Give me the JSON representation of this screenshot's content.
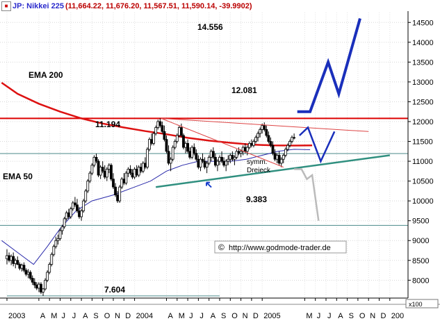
{
  "header": {
    "symbol": "JP: Nikkei 225",
    "values": "(11,664.22, 11,676.20, 11,567.51, 11,590.14, -39.9902)"
  },
  "chart_data": {
    "type": "candlestick",
    "title": "JP: Nikkei 225",
    "ylim": [
      7550,
      14750
    ],
    "y_ticks": [
      8000,
      8500,
      9000,
      9500,
      10000,
      10500,
      11000,
      11500,
      12000,
      12500,
      13000,
      13500,
      14000,
      14500
    ],
    "y_tick_labels": [
      "8000",
      "8500",
      "9000",
      "9500",
      "10000",
      "10500",
      "11000",
      "11500",
      "12000",
      "12500",
      "13000",
      "13500",
      "14000",
      "14500"
    ],
    "x_ticks": [
      {
        "label": "2003",
        "m": 0
      },
      {
        "label": "A",
        "m": 3
      },
      {
        "label": "M",
        "m": 4
      },
      {
        "label": "J",
        "m": 5
      },
      {
        "label": "J",
        "m": 6
      },
      {
        "label": "A",
        "m": 7
      },
      {
        "label": "S",
        "m": 8
      },
      {
        "label": "O",
        "m": 9
      },
      {
        "label": "N",
        "m": 10
      },
      {
        "label": "D",
        "m": 11
      },
      {
        "label": "2004",
        "m": 12
      },
      {
        "label": "A",
        "m": 15
      },
      {
        "label": "M",
        "m": 16
      },
      {
        "label": "J",
        "m": 17
      },
      {
        "label": "J",
        "m": 18
      },
      {
        "label": "A",
        "m": 19
      },
      {
        "label": "S",
        "m": 20
      },
      {
        "label": "O",
        "m": 21
      },
      {
        "label": "N",
        "m": 22
      },
      {
        "label": "D",
        "m": 23
      },
      {
        "label": "2005",
        "m": 24
      },
      {
        "label": "M",
        "m": 28
      },
      {
        "label": "J",
        "m": 29
      },
      {
        "label": "J",
        "m": 30
      },
      {
        "label": "A",
        "m": 31
      },
      {
        "label": "S",
        "m": 32
      },
      {
        "label": "O",
        "m": 33
      },
      {
        "label": "N",
        "m": 34
      },
      {
        "label": "D",
        "m": 35
      },
      {
        "label": "200",
        "m": 36
      }
    ],
    "x_scale_label": "x100",
    "support_resistance": [
      {
        "value": 12081,
        "label": "12.081",
        "color": "#dd0000"
      },
      {
        "value": 11194,
        "label": "11.194",
        "color": "#4a8a8a"
      },
      {
        "value": 9383,
        "label": "9.383",
        "color": "#4a8a8a"
      }
    ],
    "low_line": {
      "value": 7604,
      "label": "7.604",
      "from_m": 0,
      "to_m": 20
    },
    "target_label": "14.556",
    "ema200": {
      "label": "EMA 200",
      "points": [
        [
          -0.5,
          12980
        ],
        [
          1,
          12700
        ],
        [
          3,
          12450
        ],
        [
          5,
          12250
        ],
        [
          7,
          12080
        ],
        [
          9,
          11950
        ],
        [
          11,
          11850
        ],
        [
          13,
          11760
        ],
        [
          15,
          11680
        ],
        [
          17,
          11590
        ],
        [
          19,
          11520
        ],
        [
          21,
          11465
        ],
        [
          23,
          11420
        ],
        [
          25,
          11400
        ],
        [
          27,
          11395
        ],
        [
          28.7,
          11400
        ]
      ]
    },
    "ema50": {
      "label": "EMA 50",
      "points": [
        [
          -0.5,
          9000
        ],
        [
          1,
          8700
        ],
        [
          2.5,
          8400
        ],
        [
          3.8,
          8850
        ],
        [
          5,
          9300
        ],
        [
          6.5,
          9750
        ],
        [
          8,
          10000
        ],
        [
          10,
          10150
        ],
        [
          12,
          10350
        ],
        [
          13.5,
          10500
        ],
        [
          15,
          10750
        ],
        [
          16.5,
          10900
        ],
        [
          18,
          11000
        ],
        [
          19.5,
          11000
        ],
        [
          21,
          11000
        ],
        [
          22.5,
          11050
        ],
        [
          24,
          11150
        ],
        [
          25.5,
          11250
        ],
        [
          27,
          11300
        ],
        [
          28.5,
          11290
        ]
      ]
    },
    "candles": [
      [
        0,
        8540,
        8780,
        8400,
        8620
      ],
      [
        0.2,
        8620,
        8700,
        8450,
        8500
      ],
      [
        0.4,
        8500,
        8650,
        8380,
        8600
      ],
      [
        0.6,
        8600,
        8700,
        8350,
        8420
      ],
      [
        0.8,
        8420,
        8550,
        8300,
        8500
      ],
      [
        1,
        8500,
        8600,
        8380,
        8400
      ],
      [
        1.2,
        8400,
        8450,
        8250,
        8300
      ],
      [
        1.4,
        8300,
        8420,
        8220,
        8380
      ],
      [
        1.6,
        8380,
        8450,
        8200,
        8250
      ],
      [
        1.8,
        8250,
        8300,
        8100,
        8150
      ],
      [
        2,
        8150,
        8280,
        8050,
        8200
      ],
      [
        2.2,
        8200,
        8250,
        8000,
        8050
      ],
      [
        2.4,
        8050,
        8120,
        7880,
        7950
      ],
      [
        2.6,
        7950,
        8050,
        7800,
        7880
      ],
      [
        2.8,
        7880,
        7950,
        7750,
        7800
      ],
      [
        3,
        7800,
        7950,
        7700,
        7900
      ],
      [
        3.2,
        7900,
        7950,
        7650,
        7700
      ],
      [
        3.4,
        7700,
        7800,
        7604,
        7780
      ],
      [
        3.6,
        7780,
        8050,
        7740,
        8000
      ],
      [
        3.8,
        8000,
        8250,
        7950,
        8200
      ],
      [
        4,
        8200,
        8450,
        8150,
        8400
      ],
      [
        4.2,
        8400,
        8700,
        8350,
        8650
      ],
      [
        4.4,
        8650,
        8900,
        8600,
        8850
      ],
      [
        4.6,
        8850,
        9100,
        8800,
        9000
      ],
      [
        4.8,
        9000,
        9150,
        8900,
        9050
      ],
      [
        5,
        9050,
        9300,
        9000,
        9250
      ],
      [
        5.2,
        9250,
        9400,
        9150,
        9350
      ],
      [
        5.4,
        9350,
        9600,
        9300,
        9550
      ],
      [
        5.6,
        9550,
        9750,
        9500,
        9700
      ],
      [
        5.8,
        9700,
        9800,
        9550,
        9600
      ],
      [
        6,
        9600,
        9850,
        9550,
        9800
      ],
      [
        6.2,
        9800,
        10000,
        9750,
        9950
      ],
      [
        6.4,
        9950,
        10100,
        9850,
        9900
      ],
      [
        6.6,
        9900,
        10050,
        9700,
        9750
      ],
      [
        6.8,
        9750,
        9850,
        9550,
        9600
      ],
      [
        7,
        9600,
        9800,
        9500,
        9750
      ],
      [
        7.2,
        9750,
        10050,
        9700,
        10000
      ],
      [
        7.4,
        10000,
        10300,
        9950,
        10250
      ],
      [
        7.6,
        10250,
        10550,
        10200,
        10500
      ],
      [
        7.8,
        10500,
        10750,
        10450,
        10700
      ],
      [
        8,
        10700,
        10950,
        10650,
        10900
      ],
      [
        8.2,
        10900,
        11150,
        10850,
        11100
      ],
      [
        8.4,
        11100,
        11194,
        10950,
        11000
      ],
      [
        8.6,
        11000,
        11050,
        10600,
        10650
      ],
      [
        8.8,
        10650,
        10900,
        10550,
        10850
      ],
      [
        9,
        10850,
        11000,
        10700,
        10750
      ],
      [
        9.2,
        10750,
        10900,
        10550,
        10600
      ],
      [
        9.4,
        10600,
        10850,
        10500,
        10800
      ],
      [
        9.6,
        10800,
        10950,
        10700,
        10900
      ],
      [
        9.8,
        10900,
        10950,
        10500,
        10550
      ],
      [
        10,
        10550,
        10700,
        10300,
        10350
      ],
      [
        10.2,
        10350,
        10450,
        10100,
        10150
      ],
      [
        10.4,
        10150,
        10250,
        9950,
        10000
      ],
      [
        10.6,
        10000,
        10400,
        9950,
        10350
      ],
      [
        10.8,
        10350,
        10600,
        10300,
        10550
      ],
      [
        11,
        10550,
        10700,
        10400,
        10450
      ],
      [
        11.2,
        10450,
        10750,
        10400,
        10700
      ],
      [
        11.4,
        10700,
        10850,
        10600,
        10800
      ],
      [
        11.6,
        10800,
        10900,
        10650,
        10700
      ],
      [
        11.8,
        10700,
        10800,
        10550,
        10600
      ],
      [
        12,
        10600,
        10850,
        10550,
        10800
      ],
      [
        12.2,
        10800,
        10900,
        10600,
        10650
      ],
      [
        12.4,
        10650,
        10900,
        10600,
        10850
      ],
      [
        12.6,
        10850,
        10950,
        10700,
        10750
      ],
      [
        12.8,
        10750,
        11000,
        10700,
        10950
      ],
      [
        13,
        10950,
        11100,
        10800,
        10850
      ],
      [
        13.2,
        10850,
        11350,
        10800,
        11300
      ],
      [
        13.4,
        11300,
        11600,
        11250,
        11550
      ],
      [
        13.6,
        11550,
        11700,
        11400,
        11450
      ],
      [
        13.8,
        11450,
        11750,
        11400,
        11700
      ],
      [
        14,
        11700,
        11900,
        11650,
        11850
      ],
      [
        14.2,
        11850,
        12050,
        11800,
        12000
      ],
      [
        14.4,
        12000,
        12081,
        11850,
        11900
      ],
      [
        14.6,
        11900,
        12000,
        11700,
        11750
      ],
      [
        14.8,
        11750,
        11900,
        11500,
        11550
      ],
      [
        15,
        11550,
        11650,
        11200,
        11250
      ],
      [
        15.2,
        11250,
        11400,
        10900,
        10950
      ],
      [
        15.4,
        10950,
        11100,
        10750,
        11050
      ],
      [
        15.6,
        11050,
        11400,
        11000,
        11350
      ],
      [
        15.8,
        11350,
        11550,
        11300,
        11500
      ],
      [
        16,
        11500,
        11700,
        11450,
        11650
      ],
      [
        16.2,
        11650,
        11900,
        11600,
        11850
      ],
      [
        16.4,
        11850,
        11950,
        11600,
        11650
      ],
      [
        16.6,
        11650,
        11700,
        11300,
        11350
      ],
      [
        16.8,
        11350,
        11500,
        11200,
        11450
      ],
      [
        17,
        11450,
        11550,
        11200,
        11250
      ],
      [
        17.2,
        11250,
        11350,
        11050,
        11100
      ],
      [
        17.4,
        11100,
        11400,
        11050,
        11350
      ],
      [
        17.6,
        11350,
        11450,
        11150,
        11200
      ],
      [
        17.8,
        11200,
        11300,
        11000,
        11050
      ],
      [
        18,
        11050,
        11150,
        10800,
        10850
      ],
      [
        18.2,
        10850,
        11100,
        10750,
        11050
      ],
      [
        18.4,
        11050,
        11200,
        10950,
        11000
      ],
      [
        18.6,
        11000,
        11100,
        10800,
        10850
      ],
      [
        18.8,
        10850,
        11000,
        10700,
        10950
      ],
      [
        19,
        10950,
        11150,
        10900,
        11100
      ],
      [
        19.2,
        11100,
        11300,
        11000,
        11250
      ],
      [
        19.4,
        11250,
        11350,
        11050,
        11100
      ],
      [
        19.6,
        11100,
        11200,
        10850,
        10900
      ],
      [
        19.8,
        10900,
        11050,
        10750,
        11000
      ],
      [
        20,
        11000,
        11150,
        10900,
        11100
      ],
      [
        20.2,
        11100,
        11250,
        10950,
        11000
      ],
      [
        20.4,
        11000,
        11100,
        10850,
        10900
      ],
      [
        20.6,
        10900,
        11050,
        10750,
        11000
      ],
      [
        20.8,
        11000,
        11150,
        10900,
        11050
      ],
      [
        21,
        11050,
        11200,
        10950,
        11150
      ],
      [
        21.2,
        11150,
        11250,
        11000,
        11050
      ],
      [
        21.4,
        11050,
        11150,
        10900,
        11100
      ],
      [
        21.6,
        11100,
        11300,
        11050,
        11250
      ],
      [
        21.8,
        11250,
        11350,
        11150,
        11200
      ],
      [
        22,
        11200,
        11300,
        11100,
        11250
      ],
      [
        22.2,
        11250,
        11400,
        11150,
        11350
      ],
      [
        22.4,
        11350,
        11450,
        11200,
        11250
      ],
      [
        22.6,
        11250,
        11400,
        11150,
        11350
      ],
      [
        22.8,
        11350,
        11500,
        11300,
        11450
      ],
      [
        23,
        11450,
        11550,
        11350,
        11400
      ],
      [
        23.2,
        11400,
        11550,
        11350,
        11500
      ],
      [
        23.4,
        11500,
        11650,
        11450,
        11600
      ],
      [
        23.6,
        11600,
        11750,
        11500,
        11700
      ],
      [
        23.8,
        11700,
        11850,
        11600,
        11800
      ],
      [
        24,
        11800,
        11950,
        11700,
        11900
      ],
      [
        24.2,
        11900,
        11980,
        11750,
        11800
      ],
      [
        24.4,
        11800,
        11900,
        11600,
        11650
      ],
      [
        24.6,
        11650,
        11750,
        11450,
        11500
      ],
      [
        24.8,
        11500,
        11600,
        11350,
        11400
      ],
      [
        25,
        11400,
        11500,
        11150,
        11200
      ],
      [
        25.2,
        11200,
        11300,
        11000,
        11050
      ],
      [
        25.4,
        11050,
        11200,
        10950,
        11150
      ],
      [
        25.6,
        11150,
        11250,
        10900,
        10950
      ],
      [
        25.8,
        10950,
        11100,
        10850,
        11050
      ],
      [
        26,
        11050,
        11200,
        10950,
        11150
      ],
      [
        26.2,
        11150,
        11350,
        11100,
        11300
      ],
      [
        26.4,
        11300,
        11450,
        11250,
        11400
      ],
      [
        26.6,
        11400,
        11550,
        11350,
        11500
      ],
      [
        26.8,
        11500,
        11650,
        11450,
        11600
      ],
      [
        27,
        11600,
        11700,
        11550,
        11590
      ]
    ],
    "annotations": {
      "triangle_label_1": "symm.",
      "triangle_label_2": "Dreieck",
      "copyright_symbol": "©",
      "copyright_url": "http://www.godmode-trader.de"
    },
    "trendlines": [
      {
        "color": "#2f8f7f",
        "width": 2.5,
        "points": [
          [
            14,
            10350
          ],
          [
            36,
            11150
          ]
        ]
      },
      {
        "color": "#dd4444",
        "width": 1,
        "points": [
          [
            14.5,
            12081
          ],
          [
            34,
            11750
          ]
        ]
      },
      {
        "color": "#dd4444",
        "width": 1,
        "points": [
          [
            14.5,
            12081
          ],
          [
            26,
            10850
          ]
        ]
      }
    ],
    "scenarios": [
      {
        "color": "#1a2fbb",
        "width": 4,
        "points": [
          [
            27.3,
            12250
          ],
          [
            28.5,
            12250
          ],
          [
            30.2,
            13500
          ],
          [
            31.2,
            12700
          ],
          [
            33.2,
            14600
          ]
        ]
      },
      {
        "color": "#1a2fbb",
        "width": 2.5,
        "points": [
          [
            27.5,
            11650
          ],
          [
            28.3,
            11850
          ],
          [
            29.5,
            11000
          ],
          [
            30.8,
            11750
          ]
        ]
      },
      {
        "color": "#bbbbbb",
        "width": 2.5,
        "points": [
          [
            27.0,
            10800
          ],
          [
            27.7,
            10800
          ],
          [
            28.2,
            10550
          ],
          [
            28.7,
            10650
          ],
          [
            29.3,
            9500
          ]
        ]
      }
    ],
    "arrow": {
      "color": "#1a3fcc",
      "at": [
        18.5,
        10500
      ]
    }
  }
}
